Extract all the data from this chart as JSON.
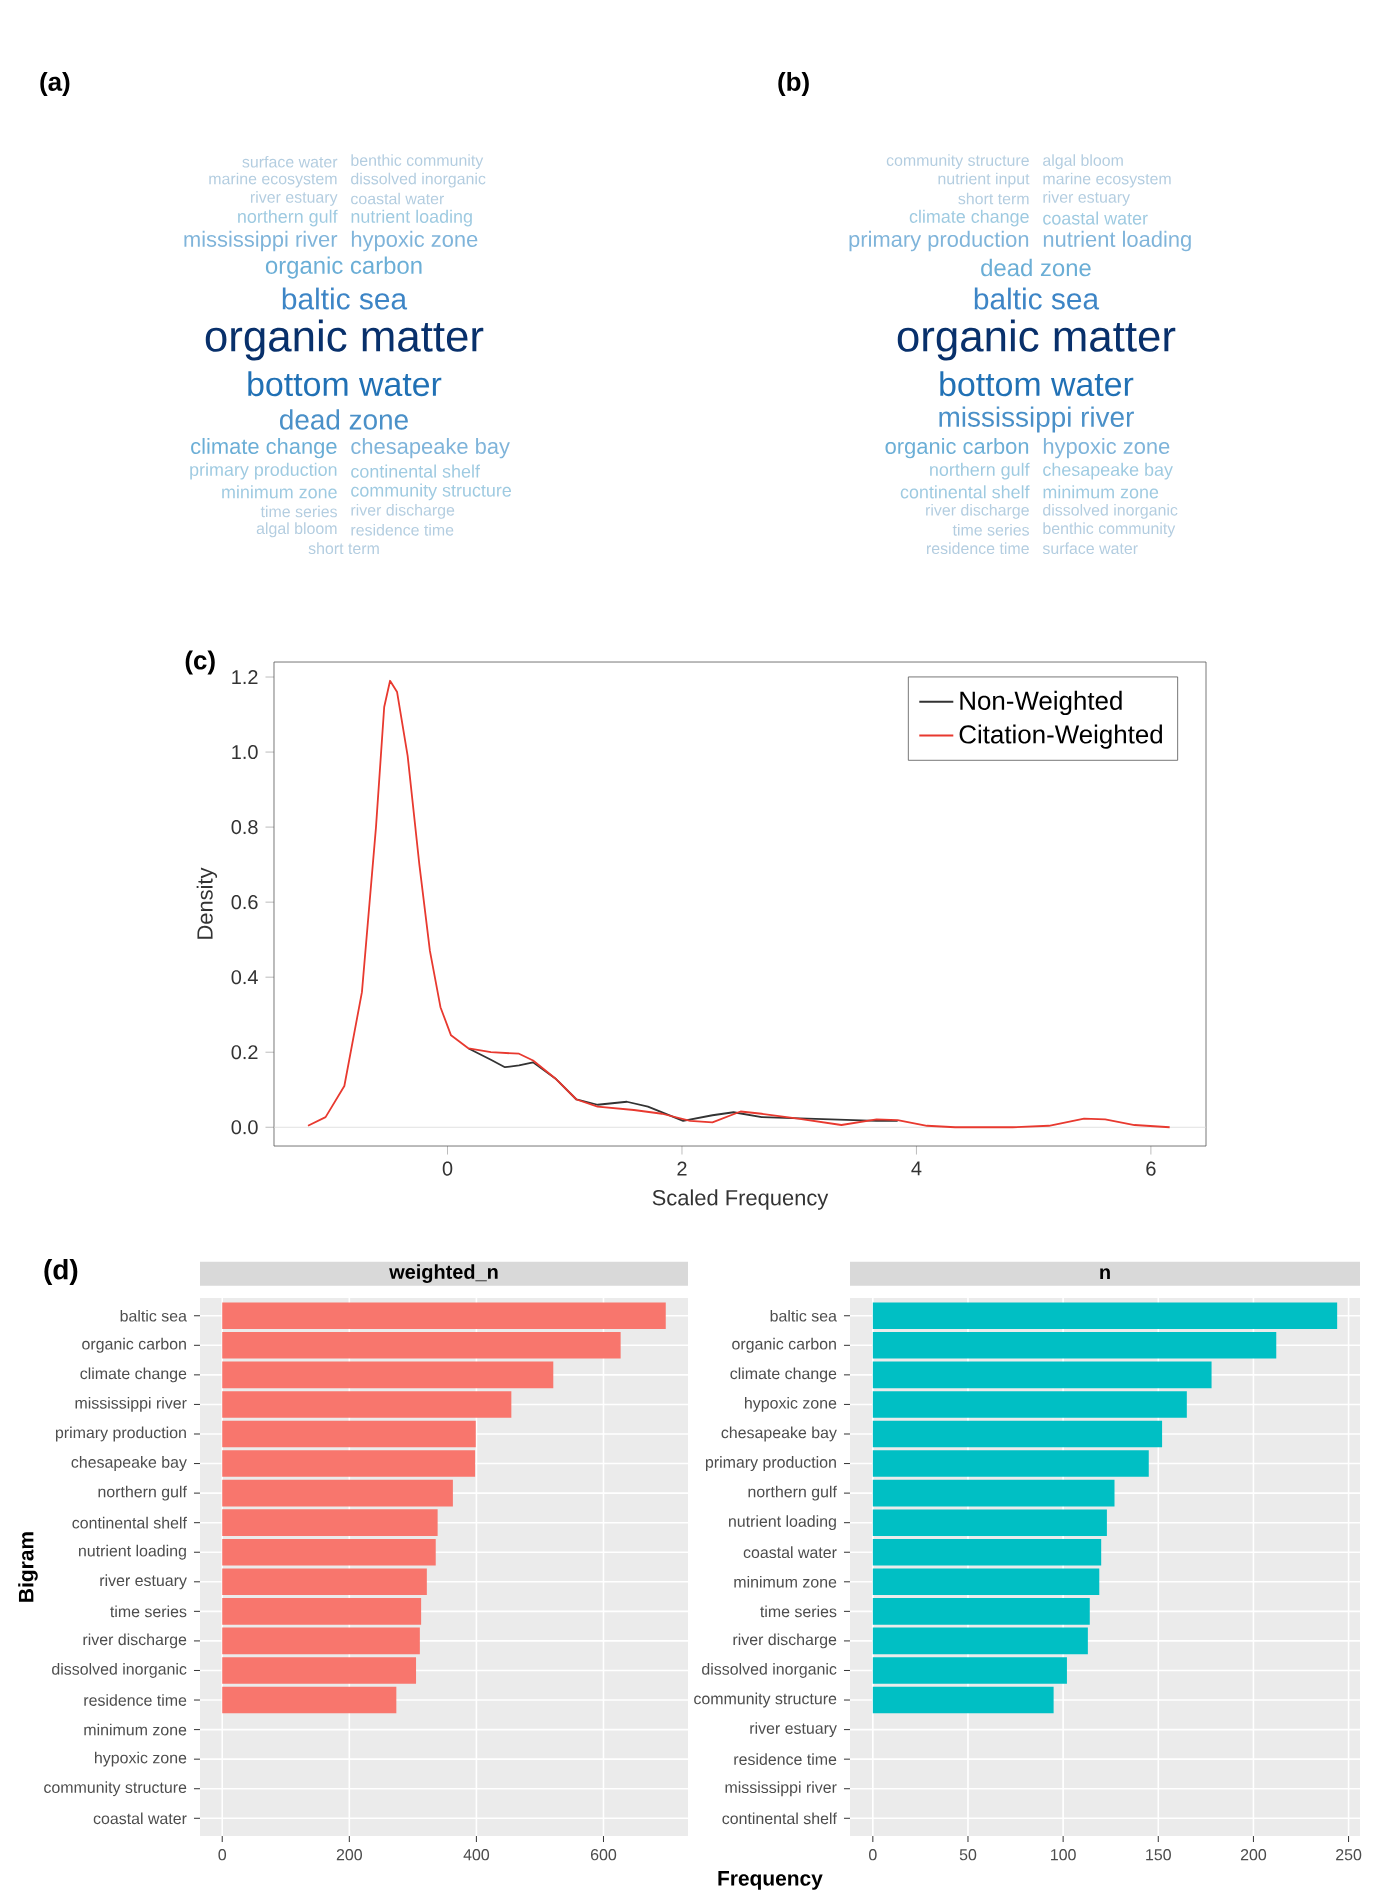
{
  "chart_data": [
    {
      "type": "other",
      "title": "(a)",
      "annotations": [
        "organic matter",
        "bottom water",
        "baltic sea",
        "dead zone",
        "organic carbon",
        "climate change",
        "chesapeake bay",
        "mississippi river",
        "hypoxic zone",
        "primary production",
        "continental shelf",
        "northern gulf",
        "nutrient loading",
        "minimum zone",
        "community structure",
        "river estuary",
        "coastal water",
        "time series",
        "river discharge",
        "marine ecosystem",
        "dissolved inorganic",
        "algal bloom",
        "residence time",
        "surface water",
        "benthic community",
        "short term"
      ]
    },
    {
      "type": "other",
      "title": "(b)",
      "annotations": [
        "organic matter",
        "bottom water",
        "baltic sea",
        "mississippi river",
        "dead zone",
        "organic carbon",
        "hypoxic zone",
        "primary production",
        "nutrient loading",
        "northern gulf",
        "chesapeake bay",
        "climate change",
        "coastal water",
        "continental shelf",
        "minimum zone",
        "short term",
        "river estuary",
        "river discharge",
        "dissolved inorganic",
        "nutrient input",
        "marine ecosystem",
        "time series",
        "benthic community",
        "community structure",
        "algal bloom",
        "residence time",
        "surface water"
      ]
    },
    {
      "type": "line",
      "title": "(c)",
      "xlabel": "Scaled Frequency",
      "ylabel": "Density",
      "xlim": [
        -1.48,
        6.47
      ],
      "ylim": [
        -0.05,
        1.24
      ],
      "xticks": [
        0,
        2,
        4,
        6
      ],
      "yticks": [
        {
          "value": 0,
          "label": "0.0"
        },
        0.2,
        0.4,
        0.6,
        0.8,
        {
          "value": 1,
          "label": "1.0"
        },
        1.2
      ],
      "legend": "top right",
      "ref_lines": [
        {
          "axis": "y",
          "value": 0,
          "color": "#d9d9d9"
        }
      ],
      "series": [
        {
          "name": "Non-Weighted",
          "color": "#333333",
          "x": [
            0.18,
            0.37,
            0.49,
            0.61,
            0.73,
            0.92,
            1.1,
            1.28,
            1.53,
            1.71,
            2.01,
            2.26,
            2.44,
            2.68,
            2.99,
            3.36,
            3.66,
            3.84
          ],
          "values": [
            0.21,
            0.18,
            0.16,
            0.165,
            0.173,
            0.13,
            0.074,
            0.06,
            0.068,
            0.055,
            0.017,
            0.032,
            0.04,
            0.027,
            null,
            null,
            0.017,
            0.017
          ]
        },
        {
          "name": "Citation-Weighted",
          "color": "#e8392f",
          "x": [
            -1.19,
            -1.04,
            -0.88,
            -0.73,
            -0.61,
            -0.54,
            -0.49,
            -0.43,
            -0.34,
            -0.24,
            -0.15,
            -0.06,
            0.03,
            0.18,
            0.37,
            0.61,
            0.73,
            0.92,
            1.1,
            1.28,
            1.59,
            1.83,
            2.07,
            2.26,
            2.5,
            2.68,
            2.99,
            3.36,
            3.66,
            3.84,
            4.09,
            4.33,
            4.82,
            5.13,
            5.43,
            5.61,
            5.86,
            6.16
          ],
          "values": [
            0.004,
            0.027,
            0.11,
            0.36,
            0.8,
            1.12,
            1.19,
            1.16,
            0.99,
            0.7,
            0.47,
            0.32,
            0.245,
            0.21,
            0.2,
            0.196,
            0.178,
            0.13,
            0.074,
            0.055,
            0.046,
            0.036,
            0.017,
            0.013,
            0.042,
            0.036,
            0.023,
            0.006,
            0.021,
            0.019,
            0.004,
            0,
            0,
            0.004,
            0.023,
            0.021,
            0.006,
            0
          ]
        }
      ]
    },
    {
      "type": "bar",
      "orientation": "horizontal",
      "title": "(d)",
      "subtitle": "weighted_n",
      "ylabel": "Bigram",
      "color": "#f8766d",
      "grid": true,
      "xlim": [
        -35,
        733
      ],
      "xticks": [
        0,
        200,
        400,
        600
      ],
      "categories": [
        "baltic sea",
        "organic carbon",
        "climate change",
        "mississippi river",
        "primary production",
        "chesapeake bay",
        "northern gulf",
        "continental shelf",
        "nutrient loading",
        "river estuary",
        "time series",
        "river discharge",
        "dissolved inorganic",
        "residence time",
        "minimum zone",
        "hypoxic zone",
        "community structure",
        "coastal water"
      ],
      "values": [
        698,
        627,
        521,
        455,
        399,
        398,
        363,
        339,
        336,
        322,
        313,
        311,
        305,
        274,
        null,
        null,
        null,
        null
      ]
    },
    {
      "type": "bar",
      "orientation": "horizontal",
      "subtitle": "n",
      "xlabel": "Frequency",
      "color": "#00bfc4",
      "grid": true,
      "xlim": [
        -12,
        256
      ],
      "xticks": [
        0,
        50,
        100,
        150,
        200,
        250
      ],
      "categories": [
        "baltic sea",
        "organic carbon",
        "climate change",
        "hypoxic zone",
        "chesapeake bay",
        "primary production",
        "northern gulf",
        "nutrient loading",
        "coastal water",
        "minimum zone",
        "time series",
        "river discharge",
        "dissolved inorganic",
        "community structure",
        "river estuary",
        "residence time",
        "mississippi river",
        "continental shelf"
      ],
      "values": [
        244,
        212,
        178,
        165,
        152,
        145,
        127,
        123,
        120,
        119,
        114,
        113,
        102,
        95,
        null,
        null,
        null,
        null
      ]
    }
  ]
}
